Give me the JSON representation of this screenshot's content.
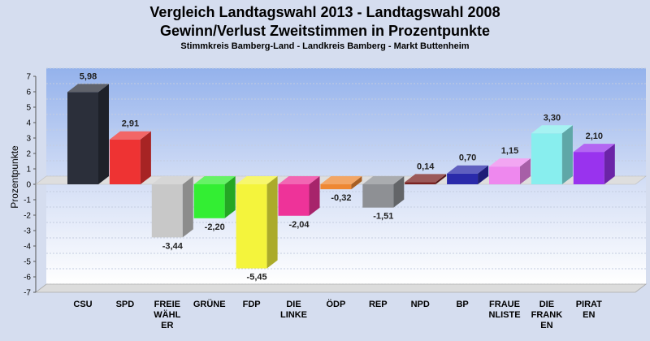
{
  "chart_data": {
    "type": "bar",
    "title": [
      "Vergleich Landtagswahl 2013 - Landtagswahl 2008",
      "Gewinn/Verlust Zweitstimmen in Prozentpunkte"
    ],
    "subtitle": "Stimmkreis Bamberg-Land - Landkreis Bamberg - Markt Buttenheim",
    "ylabel": "Prozentpunkte",
    "ylim": [
      -7,
      7
    ],
    "yticks": [
      -7,
      -6,
      -5,
      -4,
      -3,
      -2,
      -1,
      0,
      1,
      2,
      3,
      4,
      5,
      6,
      7
    ],
    "grid": true,
    "categories": [
      [
        "CSU"
      ],
      [
        "SPD"
      ],
      [
        "FREIE",
        "WÄHL",
        "ER"
      ],
      [
        "GRÜNE"
      ],
      [
        "FDP"
      ],
      [
        "DIE",
        "LINKE"
      ],
      [
        "ÖDP"
      ],
      [
        "REP"
      ],
      [
        "NPD"
      ],
      [
        "BP"
      ],
      [
        "FRAUE",
        "NLISTE"
      ],
      [
        "DIE",
        "FRANK",
        "EN"
      ],
      [
        "PIRAT",
        "EN"
      ]
    ],
    "values": [
      5.98,
      2.91,
      -3.44,
      -2.2,
      -5.45,
      -2.04,
      -0.32,
      -1.51,
      0.14,
      0.7,
      1.15,
      3.3,
      2.1
    ],
    "value_labels": [
      "5,98",
      "2,91",
      "-3,44",
      "-2,20",
      "-5,45",
      "-2,04",
      "-0,32",
      "-1,51",
      "0,14",
      "0,70",
      "1,15",
      "3,30",
      "2,10"
    ],
    "colors": [
      "#2b2f3a",
      "#ee3333",
      "#c8c8c8",
      "#33ee33",
      "#f4f43c",
      "#ee3399",
      "#ee8833",
      "#8e9094",
      "#7a2222",
      "#2a2aaa",
      "#ee88ee",
      "#88eeee",
      "#9933ee"
    ]
  }
}
